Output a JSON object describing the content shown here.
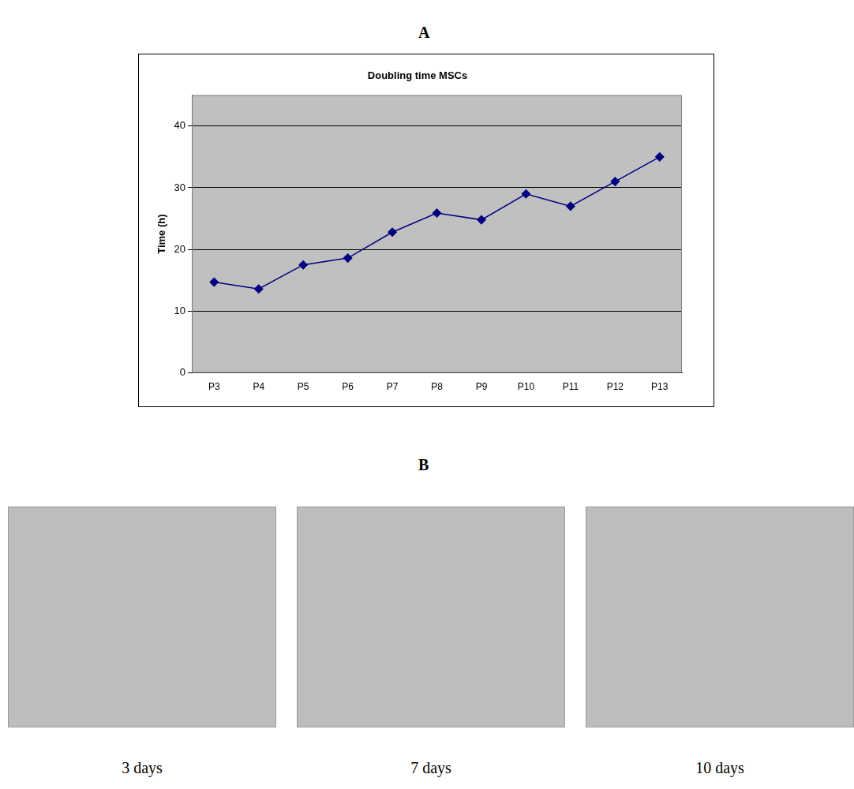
{
  "panel_labels": [
    "A",
    "B"
  ],
  "chart_data": {
    "type": "line",
    "title": "Doubling time MSCs",
    "y_label": "Time (h)",
    "categories": [
      "P3",
      "P4",
      "P5",
      "P6",
      "P7",
      "P8",
      "P9",
      "P10",
      "P11",
      "P12",
      "P13"
    ],
    "values": [
      14.7,
      13.6,
      17.5,
      18.6,
      22.8,
      25.9,
      24.8,
      29,
      27,
      31,
      35
    ],
    "color": "#000080",
    "marker": "diamond",
    "line_style": "solid",
    "ylim": [
      0,
      45
    ],
    "yticks": [
      0,
      10,
      20,
      30,
      40
    ],
    "grid": true
  },
  "images": [
    {
      "caption": "3 days"
    },
    {
      "caption": "7 days"
    },
    {
      "caption": "10 days"
    }
  ]
}
